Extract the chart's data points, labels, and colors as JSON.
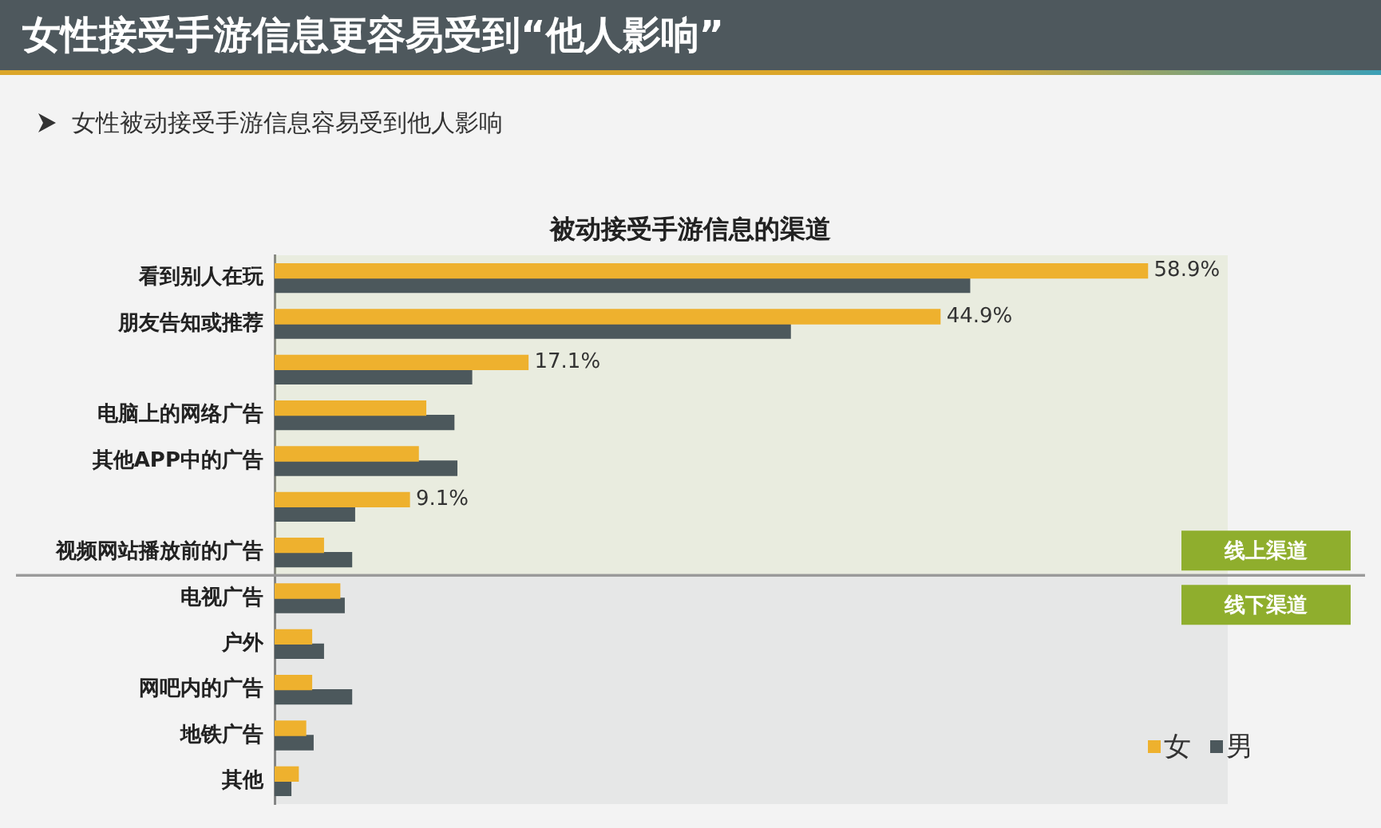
{
  "chart_data": {
    "type": "bar",
    "orientation": "horizontal",
    "title": "女性接受手游信息更容易受到“他人影响”",
    "subtitle": "女性被动接受手游信息容易受到他人影响",
    "annotations": [
      "被动接受手游信息的渠道"
    ],
    "categories": [
      "看到别人在玩",
      "朋友告知或推荐",
      null,
      "电脑上的网络广告",
      "其他APP中的广告",
      null,
      "视频网站播放前的广告",
      "电视广告",
      "户外",
      "网吧内的广告",
      "地铁广告",
      "其他"
    ],
    "series": [
      {
        "name": "女",
        "color": "#eeb12e",
        "values": [
          58.9,
          44.9,
          17.1,
          10.2,
          9.7,
          9.1,
          3.3,
          4.4,
          2.5,
          2.5,
          2.1,
          1.6
        ],
        "value_labels": [
          "58.9%",
          "44.9%",
          "17.1%",
          null,
          null,
          "9.1%",
          null,
          null,
          null,
          null,
          null,
          null
        ]
      },
      {
        "name": "男",
        "color": "#4c585c",
        "values": [
          46.9,
          34.8,
          13.3,
          12.1,
          12.3,
          5.4,
          5.2,
          4.7,
          3.3,
          5.2,
          2.6,
          1.1
        ]
      }
    ],
    "bands": [
      {
        "axis": "y",
        "from": "看到别人在玩",
        "to": "视频网站播放前的广告",
        "label": "线上渠道"
      },
      {
        "axis": "y",
        "from": "电视广告",
        "to": "其他",
        "label": "线下渠道"
      }
    ],
    "legend": "bottom right",
    "tick_labels": "y"
  }
}
